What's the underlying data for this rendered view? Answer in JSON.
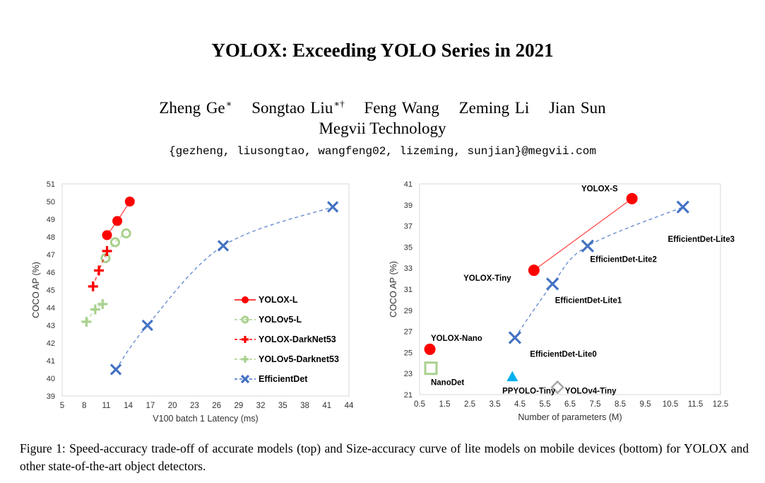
{
  "paper": {
    "title": "YOLOX: Exceeding YOLO Series in 2021",
    "authors": [
      {
        "name": "Zheng Ge",
        "mark": "∗"
      },
      {
        "name": "Songtao Liu",
        "mark": "∗†"
      },
      {
        "name": "Feng Wang",
        "mark": ""
      },
      {
        "name": "Zeming Li",
        "mark": ""
      },
      {
        "name": "Jian Sun",
        "mark": ""
      }
    ],
    "affiliation": "Megvii Technology",
    "email": "{gezheng, liusongtao, wangfeng02, lizeming, sunjian}@megvii.com",
    "caption": "Figure 1: Speed-accuracy trade-off of accurate models (top) and Size-accuracy curve of lite models on mobile devices (bottom) for YOLOX and other state-of-the-art object detectors."
  },
  "chart_data": [
    {
      "type": "line",
      "xlabel": "V100 batch 1 Latency (ms)",
      "ylabel": "COCO AP (%)",
      "xlim": [
        5,
        44
      ],
      "ylim": [
        39,
        51
      ],
      "xticks": [
        5,
        8,
        11,
        14,
        17,
        20,
        23,
        26,
        29,
        32,
        35,
        38,
        41,
        44
      ],
      "yticks": [
        39,
        40,
        41,
        42,
        43,
        44,
        45,
        46,
        47,
        48,
        49,
        50,
        51
      ],
      "grid": false,
      "legend": "bottom-right",
      "series": [
        {
          "name": "YOLOX-L",
          "color": "#ff0000",
          "marker": "circle",
          "line": "solid",
          "x": [
            11.1,
            12.5,
            14.2
          ],
          "y": [
            48.1,
            48.9,
            50.0
          ]
        },
        {
          "name": "YOLOv5-L",
          "color": "#a9d18e",
          "marker": "open-circle",
          "line": "dashed",
          "x": [
            10.9,
            12.2,
            13.7
          ],
          "y": [
            46.8,
            47.7,
            48.2
          ]
        },
        {
          "name": "YOLOX-DarkNet53",
          "color": "#ff0000",
          "marker": "plus",
          "line": "dashed",
          "x": [
            9.2,
            10.0,
            11.1
          ],
          "y": [
            45.2,
            46.1,
            47.2
          ]
        },
        {
          "name": "YOLOv5-Darknet53",
          "color": "#a9d18e",
          "marker": "plus",
          "line": "dashed",
          "x": [
            8.3,
            9.5,
            10.5
          ],
          "y": [
            43.2,
            43.9,
            44.2
          ]
        },
        {
          "name": "EfficientDet",
          "color": "#4472c4",
          "marker": "x",
          "line": "dashed",
          "x": [
            12.3,
            16.6,
            26.9,
            41.8
          ],
          "y": [
            40.5,
            43.0,
            47.5,
            49.7
          ]
        }
      ]
    },
    {
      "type": "scatter",
      "xlabel": "Number of parameters (M)",
      "ylabel": "COCO AP (%)",
      "xlim": [
        0.5,
        12.5
      ],
      "ylim": [
        21,
        41
      ],
      "xticks": [
        0.5,
        1.5,
        2.5,
        3.5,
        4.5,
        5.5,
        6.5,
        7.5,
        8.5,
        9.5,
        10.5,
        11.5,
        12.5
      ],
      "yticks": [
        21,
        23,
        25,
        27,
        29,
        31,
        33,
        35,
        37,
        39,
        41
      ],
      "grid": false,
      "legend": "none",
      "series": [
        {
          "color": "#ff0000",
          "marker": "circle",
          "line": "solid",
          "x": [
            5.06,
            8.97
          ],
          "y": [
            32.8,
            39.6
          ]
        },
        {
          "color": "#ff0000",
          "marker": "circle",
          "line": "none",
          "x": [
            0.91
          ],
          "y": [
            25.3
          ]
        },
        {
          "color": "#4472c4",
          "marker": "x",
          "line": "dashed",
          "x": [
            4.3,
            5.8,
            7.2,
            11.0
          ],
          "y": [
            26.4,
            31.5,
            35.1,
            38.8
          ]
        },
        {
          "color": "#a9d18e",
          "marker": "open-square",
          "line": "none",
          "x": [
            0.95
          ],
          "y": [
            23.5
          ]
        },
        {
          "color": "#00b0f0",
          "marker": "triangle",
          "line": "none",
          "x": [
            4.2
          ],
          "y": [
            22.7
          ]
        },
        {
          "color": "#a6a6a6",
          "marker": "open-diamond",
          "line": "none",
          "x": [
            6.0
          ],
          "y": [
            21.7
          ]
        }
      ],
      "annotations": [
        {
          "text": "YOLOX-S",
          "x": 6.95,
          "y": 40.3
        },
        {
          "text": "YOLOX-Tiny",
          "x": 2.25,
          "y": 31.8
        },
        {
          "text": "YOLOX-Nano",
          "x": 0.95,
          "y": 26.1
        },
        {
          "text": "NanoDet",
          "x": 0.95,
          "y": 21.9
        },
        {
          "text": "PPYOLO-Tiny",
          "x": 3.8,
          "y": 21.1
        },
        {
          "text": "YOLOv4-Tiny",
          "x": 6.3,
          "y": 21.1
        },
        {
          "text": "EfficientDet-Lite0",
          "x": 4.9,
          "y": 24.6
        },
        {
          "text": "EfficientDet-Lite1",
          "x": 5.9,
          "y": 29.7
        },
        {
          "text": "EfficientDet-Lite2",
          "x": 7.3,
          "y": 33.6
        },
        {
          "text": "EfficientDet-Lite3",
          "x": 10.4,
          "y": 35.5
        }
      ]
    }
  ]
}
